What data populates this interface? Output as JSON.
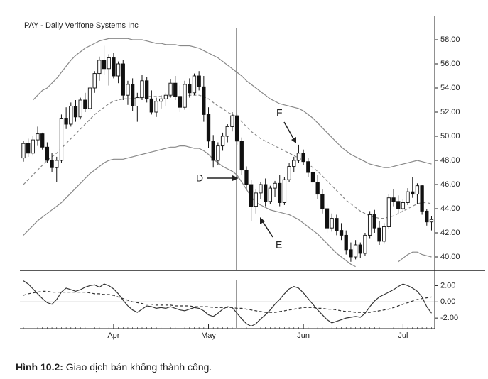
{
  "chart_data": [
    {
      "type": "candlestick",
      "title": "PAY - Daily  Verifone Systems Inc",
      "open": [
        48.2,
        49.4,
        48.6,
        49.7,
        50.2,
        49.1,
        48.0,
        47.4,
        48.0,
        51.5,
        51.0,
        52.5,
        51.6,
        53.0,
        52.3,
        54.0,
        55.2,
        56.3,
        55.6,
        56.5,
        55.0,
        56.0,
        53.4,
        54.3,
        52.5,
        53.2,
        54.6,
        53.1,
        52.0,
        52.9,
        53.1,
        53.4,
        54.4,
        53.3,
        52.4,
        54.3,
        53.6,
        55.0,
        54.1,
        51.8,
        49.6,
        48.0,
        49.2,
        50.0,
        50.8,
        51.7,
        49.6,
        47.2,
        46.0,
        44.2,
        45.3,
        46.0,
        44.6,
        45.7,
        46.1,
        44.5,
        46.4,
        47.5,
        48.0,
        48.6,
        47.9,
        47.0,
        46.2,
        45.2,
        44.0,
        42.4,
        43.2,
        42.2,
        41.8,
        40.6,
        40.0,
        41.0,
        40.3,
        41.8,
        43.5,
        42.4,
        41.3,
        42.5,
        44.9,
        44.6,
        44.0,
        44.5,
        45.4,
        45.2,
        45.9,
        43.8,
        42.9
      ],
      "high": [
        49.6,
        49.8,
        50.0,
        50.8,
        50.3,
        49.5,
        48.6,
        48.3,
        51.8,
        52.4,
        52.8,
        53.0,
        53.2,
        53.6,
        54.2,
        55.4,
        56.6,
        57.5,
        56.8,
        56.9,
        56.2,
        56.3,
        54.6,
        54.8,
        53.6,
        55.1,
        54.9,
        53.8,
        53.2,
        53.4,
        53.6,
        54.7,
        55.0,
        54.2,
        54.6,
        54.8,
        55.2,
        55.4,
        55.0,
        52.4,
        50.1,
        49.5,
        50.3,
        51.0,
        52.0,
        51.8,
        49.9,
        47.5,
        46.4,
        45.6,
        46.2,
        46.5,
        45.9,
        46.3,
        46.8,
        46.6,
        47.8,
        48.3,
        49.3,
        48.9,
        48.2,
        47.4,
        46.8,
        45.6,
        44.4,
        43.6,
        43.5,
        42.8,
        42.2,
        41.2,
        41.4,
        41.2,
        42.0,
        43.8,
        43.9,
        43.0,
        42.8,
        45.2,
        45.6,
        45.1,
        44.8,
        45.7,
        46.6,
        46.1,
        46.0,
        44.0,
        43.4
      ],
      "low": [
        47.9,
        48.3,
        48.4,
        49.2,
        48.9,
        47.8,
        47.0,
        46.2,
        47.8,
        50.6,
        50.8,
        51.2,
        51.4,
        52.0,
        52.1,
        53.6,
        54.6,
        55.1,
        54.2,
        54.8,
        54.4,
        53.0,
        52.6,
        52.1,
        51.2,
        53.0,
        52.8,
        51.8,
        51.6,
        52.3,
        52.5,
        53.2,
        53.0,
        52.0,
        52.2,
        53.2,
        53.4,
        53.8,
        51.2,
        49.0,
        47.4,
        47.6,
        48.8,
        49.5,
        50.4,
        49.3,
        46.8,
        45.6,
        43.0,
        43.6,
        44.8,
        44.2,
        44.4,
        45.0,
        44.2,
        44.3,
        46.2,
        47.0,
        47.8,
        47.6,
        46.6,
        45.8,
        44.8,
        43.6,
        42.0,
        42.1,
        41.8,
        41.4,
        40.2,
        39.6,
        39.8,
        39.9,
        40.1,
        41.5,
        42.0,
        41.0,
        41.1,
        42.3,
        44.2,
        43.6,
        43.8,
        44.3,
        44.9,
        44.4,
        43.5,
        42.6,
        42.2
      ],
      "close": [
        49.4,
        48.6,
        49.7,
        50.2,
        49.1,
        48.0,
        47.4,
        48.0,
        51.5,
        51.0,
        52.5,
        51.6,
        53.0,
        52.3,
        54.0,
        55.2,
        56.3,
        55.6,
        56.5,
        55.0,
        56.0,
        53.4,
        54.3,
        52.5,
        53.2,
        54.6,
        53.1,
        52.0,
        52.9,
        53.1,
        53.4,
        54.4,
        53.3,
        52.4,
        54.3,
        53.6,
        55.0,
        54.1,
        51.8,
        49.6,
        48.0,
        49.2,
        50.0,
        50.8,
        51.7,
        49.6,
        47.2,
        46.0,
        44.2,
        45.3,
        46.0,
        44.6,
        45.7,
        46.1,
        44.5,
        46.4,
        47.5,
        48.0,
        48.6,
        47.9,
        47.0,
        46.2,
        45.2,
        44.0,
        42.4,
        43.2,
        42.2,
        41.8,
        40.6,
        40.0,
        41.0,
        40.3,
        41.8,
        43.5,
        42.4,
        41.3,
        42.5,
        44.9,
        44.6,
        44.0,
        44.5,
        45.4,
        45.2,
        45.9,
        43.8,
        42.9,
        43.1
      ],
      "bands": [
        {
          "color": "#888888",
          "dashed": false,
          "values": [
            null,
            null,
            53.0,
            53.4,
            53.8,
            54.0,
            54.4,
            54.8,
            55.3,
            55.8,
            56.3,
            56.7,
            57.0,
            57.3,
            57.5,
            57.7,
            57.9,
            58.0,
            58.1,
            58.1,
            58.1,
            58.1,
            58.1,
            58.0,
            58.0,
            58.0,
            57.9,
            57.8,
            57.7,
            57.7,
            57.6,
            57.6,
            57.6,
            57.5,
            57.5,
            57.5,
            57.4,
            57.3,
            57.1,
            56.9,
            56.7,
            56.5,
            56.2,
            55.9,
            55.6,
            55.3,
            55.0,
            54.6,
            54.3,
            54.0,
            53.7,
            53.4,
            53.1,
            52.9,
            52.7,
            52.6,
            52.5,
            52.4,
            52.3,
            52.1,
            51.8,
            51.5,
            51.1,
            50.7,
            50.3,
            49.9,
            49.5,
            49.1,
            48.8,
            48.5,
            48.3,
            48.1,
            47.9,
            47.7,
            47.6,
            47.5,
            47.4,
            47.4,
            47.5,
            47.6,
            47.7,
            47.8,
            47.9,
            48.0,
            47.9,
            47.8,
            47.7
          ]
        },
        {
          "color": "#888888",
          "dashed": true,
          "values": [
            46.0,
            46.4,
            46.8,
            47.2,
            47.6,
            48.0,
            48.3,
            48.6,
            49.0,
            49.4,
            49.8,
            50.2,
            50.6,
            51.0,
            51.4,
            51.8,
            52.1,
            52.4,
            52.7,
            52.9,
            53.0,
            53.1,
            53.1,
            53.1,
            53.2,
            53.2,
            53.3,
            53.3,
            53.3,
            53.3,
            53.3,
            53.3,
            53.3,
            53.3,
            53.3,
            53.4,
            53.4,
            53.4,
            53.3,
            53.1,
            52.8,
            52.5,
            52.3,
            52.0,
            51.8,
            51.6,
            51.2,
            50.8,
            50.4,
            50.1,
            49.8,
            49.6,
            49.4,
            49.2,
            49.0,
            48.8,
            48.6,
            48.4,
            48.2,
            48.0,
            47.7,
            47.4,
            47.1,
            46.7,
            46.3,
            45.9,
            45.5,
            45.1,
            44.7,
            44.4,
            44.1,
            43.8,
            43.6,
            43.4,
            43.3,
            43.2,
            43.2,
            43.3,
            43.4,
            43.6,
            43.8,
            44.0,
            44.2,
            44.4,
            44.5,
            44.5,
            44.4
          ]
        },
        {
          "color": "#888888",
          "dashed": false,
          "values": [
            41.8,
            42.2,
            42.6,
            43.0,
            43.3,
            43.6,
            43.9,
            44.2,
            44.5,
            44.9,
            45.3,
            45.7,
            46.1,
            46.5,
            46.9,
            47.2,
            47.5,
            47.8,
            48.0,
            48.1,
            48.1,
            48.1,
            48.2,
            48.3,
            48.4,
            48.5,
            48.6,
            48.7,
            48.8,
            48.9,
            49.0,
            49.1,
            49.1,
            49.2,
            49.2,
            49.1,
            49.0,
            49.0,
            48.8,
            48.5,
            48.1,
            47.8,
            47.5,
            47.3,
            47.1,
            46.8,
            46.2,
            45.6,
            45.0,
            44.5,
            44.3,
            44.1,
            43.9,
            43.8,
            43.7,
            43.6,
            43.5,
            43.3,
            43.1,
            42.8,
            42.5,
            42.2,
            41.9,
            41.5,
            41.1,
            40.7,
            40.3,
            40.0,
            39.7,
            39.4,
            39.2,
            null,
            null,
            null,
            null,
            null,
            null,
            null,
            null,
            39.6,
            39.9,
            40.2,
            40.4,
            40.4,
            40.2,
            40.1,
            40.0
          ]
        }
      ],
      "ylim": [
        39,
        60
      ],
      "yticks": [
        {
          "value": 40,
          "label": "40.00"
        },
        {
          "value": 42,
          "label": "42.00"
        },
        {
          "value": 44,
          "label": "44.00"
        },
        {
          "value": 46,
          "label": "46.00"
        },
        {
          "value": 48,
          "label": "48.00"
        },
        {
          "value": 50,
          "label": "50.00"
        },
        {
          "value": 52,
          "label": "52.00"
        },
        {
          "value": 54,
          "label": "54.00"
        },
        {
          "value": 56,
          "label": "56.00"
        },
        {
          "value": 58,
          "label": "58.00"
        }
      ],
      "annotations": [
        "D",
        "E",
        "F"
      ]
    },
    {
      "type": "line",
      "categories": [
        null,
        null,
        null,
        null,
        null,
        null,
        null,
        null,
        null,
        null,
        null,
        null,
        null,
        null,
        null,
        null,
        null,
        null,
        null,
        "Apr",
        null,
        null,
        null,
        null,
        null,
        null,
        null,
        null,
        null,
        null,
        null,
        null,
        null,
        null,
        null,
        null,
        null,
        null,
        null,
        "May",
        null,
        null,
        null,
        null,
        null,
        null,
        null,
        null,
        null,
        null,
        null,
        null,
        null,
        null,
        null,
        null,
        null,
        null,
        null,
        "Jun",
        null,
        null,
        null,
        null,
        null,
        null,
        null,
        null,
        null,
        null,
        null,
        null,
        null,
        null,
        null,
        null,
        null,
        null,
        null,
        null,
        "Jul",
        null,
        null,
        null,
        null,
        null,
        null
      ],
      "series": [
        {
          "color": "#333333",
          "dashed": false,
          "values": [
            2.6,
            2.2,
            1.6,
            1.0,
            0.4,
            -0.1,
            -0.3,
            0.3,
            1.2,
            1.7,
            1.5,
            1.3,
            1.5,
            1.8,
            2.0,
            2.1,
            1.8,
            2.2,
            2.0,
            1.6,
            1.0,
            0.2,
            -0.5,
            -1.0,
            -1.3,
            -0.9,
            -0.5,
            -0.6,
            -0.8,
            -0.7,
            -0.8,
            -0.6,
            -0.8,
            -1.0,
            -1.1,
            -0.9,
            -0.7,
            -0.8,
            -1.1,
            -1.6,
            -1.8,
            -1.4,
            -0.9,
            -0.6,
            -0.7,
            -1.4,
            -2.1,
            -2.7,
            -3.0,
            -2.7,
            -2.1,
            -1.6,
            -1.0,
            -0.3,
            0.3,
            1.0,
            1.6,
            1.9,
            1.7,
            1.1,
            0.4,
            -0.3,
            -1.0,
            -1.6,
            -2.2,
            -2.6,
            -2.4,
            -2.2,
            -2.0,
            -1.9,
            -1.8,
            -1.9,
            -1.4,
            -0.6,
            0.1,
            0.6,
            0.9,
            1.2,
            1.5,
            1.9,
            2.2,
            2.0,
            1.7,
            1.3,
            0.6,
            -0.6,
            -1.4
          ]
        },
        {
          "color": "#333333",
          "dashed": true,
          "values": [
            0.8,
            1.0,
            1.1,
            1.2,
            1.3,
            1.3,
            1.2,
            1.2,
            1.2,
            1.2,
            1.2,
            1.2,
            1.2,
            1.2,
            1.1,
            1.0,
            1.0,
            0.9,
            0.9,
            0.8,
            0.6,
            0.4,
            0.2,
            0.0,
            -0.1,
            -0.2,
            -0.3,
            -0.3,
            -0.4,
            -0.4,
            -0.4,
            -0.4,
            -0.5,
            -0.5,
            -0.5,
            -0.5,
            -0.6,
            -0.6,
            -0.6,
            -0.6,
            -0.7,
            -0.7,
            -0.7,
            -0.7,
            -0.7,
            -0.8,
            -0.8,
            -0.9,
            -1.0,
            -1.1,
            -1.2,
            -1.3,
            -1.3,
            -1.3,
            -1.2,
            -1.1,
            -1.0,
            -0.9,
            -0.8,
            -0.7,
            -0.7,
            -0.7,
            -0.8,
            -0.8,
            -0.9,
            -0.9,
            -1.0,
            -1.1,
            -1.2,
            -1.2,
            -1.3,
            -1.3,
            -1.3,
            -1.3,
            -1.2,
            -1.1,
            -1.0,
            -0.9,
            -0.7,
            -0.5,
            -0.3,
            -0.1,
            0.1,
            0.3,
            0.4,
            0.5,
            0.6
          ]
        }
      ],
      "ylim": [
        -3.3,
        3.7
      ],
      "yticks": [
        {
          "value": -2,
          "label": "-2.00"
        },
        {
          "value": 0,
          "label": "0.00"
        },
        {
          "value": 2,
          "label": "2.00"
        }
      ],
      "zero_line": true
    }
  ],
  "caption": {
    "label": "Hình 10.2:",
    "text": "Giao dịch bán khống thành công."
  }
}
